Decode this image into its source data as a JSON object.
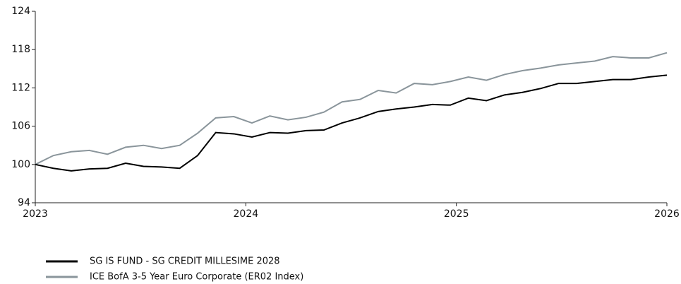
{
  "chart_data": {
    "type": "line",
    "x": [
      2023,
      2023.086,
      2023.171,
      2023.257,
      2023.343,
      2023.429,
      2023.514,
      2023.6,
      2023.686,
      2023.771,
      2023.857,
      2023.943,
      2024.029,
      2024.114,
      2024.2,
      2024.286,
      2024.371,
      2024.457,
      2024.543,
      2024.629,
      2024.714,
      2024.8,
      2024.886,
      2024.971,
      2025.057,
      2025.143,
      2025.229,
      2025.314,
      2025.4,
      2025.486,
      2025.571,
      2025.657,
      2025.743,
      2025.829,
      2025.914,
      2026
    ],
    "series": [
      {
        "name": "SG IS FUND - SG CREDIT MILLESIME 2028",
        "color": "#000000",
        "values": [
          100,
          99.4,
          99.0,
          99.3,
          99.4,
          100.2,
          99.7,
          99.6,
          99.4,
          101.4,
          105.0,
          104.8,
          104.3,
          105.0,
          104.9,
          105.3,
          105.4,
          106.5,
          107.3,
          108.3,
          108.7,
          109.0,
          109.4,
          109.3,
          110.4,
          110.0,
          110.9,
          111.3,
          111.9,
          112.7,
          112.7,
          113.0,
          113.3,
          113.3,
          113.7,
          114.0
        ]
      },
      {
        "name": "ICE BofA 3-5 Year Euro Corporate (ER02 Index)",
        "color": "#8a959b",
        "values": [
          100,
          101.4,
          102.0,
          102.2,
          101.6,
          102.7,
          103.0,
          102.5,
          103.0,
          104.9,
          107.3,
          107.5,
          106.5,
          107.6,
          107.0,
          107.4,
          108.2,
          109.8,
          110.2,
          111.6,
          111.2,
          112.7,
          112.5,
          113.0,
          113.7,
          113.2,
          114.1,
          114.7,
          115.1,
          115.6,
          115.9,
          116.2,
          116.9,
          116.7,
          116.7,
          117.5
        ]
      }
    ],
    "xlim": [
      2023,
      2026
    ],
    "xticks": [
      2023,
      2024,
      2025,
      2026
    ],
    "ylim": [
      94,
      124
    ],
    "yticks": [
      94,
      100,
      106,
      112,
      118,
      124
    ]
  }
}
